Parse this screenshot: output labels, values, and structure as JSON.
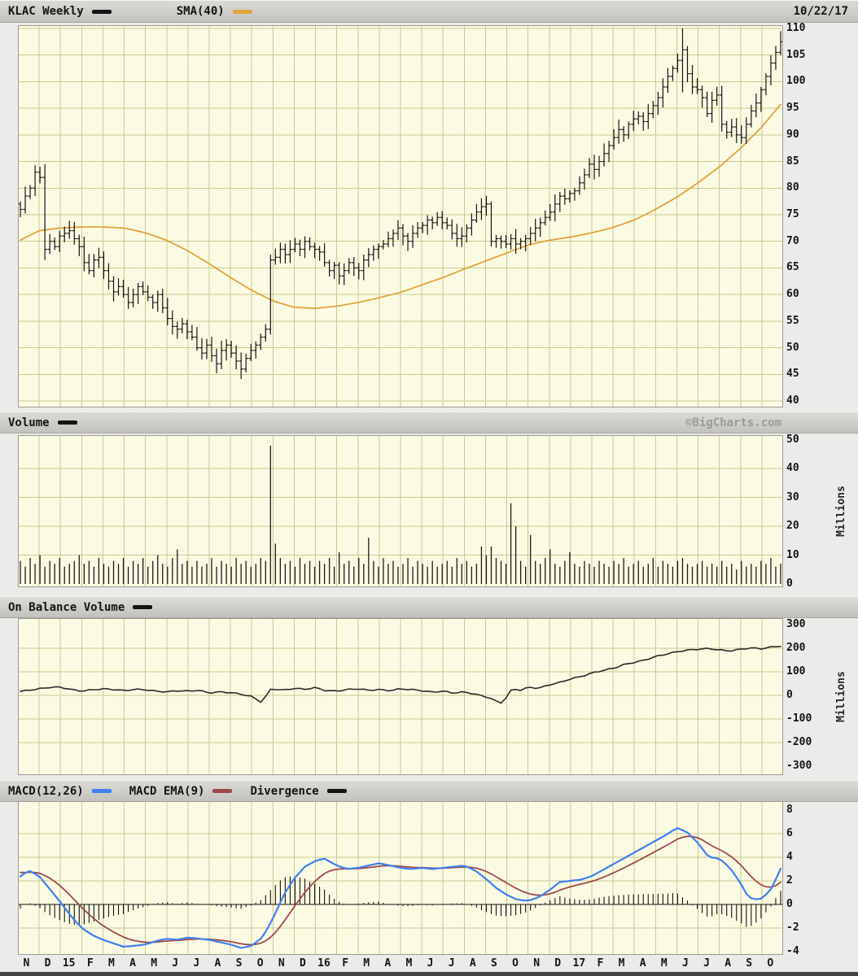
{
  "header": {
    "symbol_label": "KLAC Weekly",
    "sma_label": "SMA(40)",
    "date": "10/22/17"
  },
  "panels": {
    "volume_label": "Volume",
    "obv_label": "On Balance Volume",
    "macd_label": "MACD(12,26)",
    "macd_ema_label": "MACD EMA(9)",
    "divergence_label": "Divergence",
    "copyright": "©BigCharts.com",
    "millions_label": "Millions"
  },
  "colors": {
    "price_bar": "#141414",
    "sma_line": "#e2a33e",
    "volume_bar": "#1a1a1a",
    "obv_line": "#2a2a2a",
    "macd_line": "#4080f0",
    "macd_ema_line": "#a04848",
    "divergence_bar": "#141414",
    "plot_bg": "#fbfbe4",
    "grid": "#c9c98f",
    "frame": "#9a9a92"
  },
  "chart_data": [
    {
      "type": "ohlc-bar",
      "title": "KLAC Weekly",
      "overlay": "SMA(40)",
      "ylim": [
        40,
        110
      ],
      "yticks": [
        110,
        105,
        100,
        95,
        90,
        85,
        80,
        75,
        70,
        65,
        60,
        55,
        50,
        45,
        40
      ],
      "x_month_labels": [
        "N",
        "D",
        "15",
        "F",
        "M",
        "A",
        "M",
        "J",
        "J",
        "A",
        "S",
        "O",
        "N",
        "D",
        "16",
        "F",
        "M",
        "A",
        "M",
        "J",
        "J",
        "A",
        "S",
        "O",
        "N",
        "D",
        "17",
        "F",
        "M",
        "A",
        "M",
        "J",
        "J",
        "A",
        "S",
        "O"
      ],
      "weekly_closes": [
        76,
        78.5,
        80,
        83,
        82,
        68.5,
        70,
        69,
        71,
        71.5,
        72,
        70.5,
        69,
        66,
        64.5,
        66.5,
        67,
        64.5,
        62.5,
        60.5,
        61.5,
        60,
        58.5,
        60,
        61.5,
        60.5,
        59.5,
        58.5,
        60,
        57.5,
        55.5,
        54,
        53.5,
        54.5,
        53,
        52,
        50,
        49,
        50.5,
        48.5,
        47,
        49.5,
        50.5,
        49,
        47.5,
        46,
        48,
        49.5,
        50.5,
        52,
        53.5,
        66.5,
        67,
        68.5,
        67.5,
        68.5,
        69.5,
        68.5,
        70,
        69,
        68.5,
        68,
        66,
        64.5,
        65.5,
        63.5,
        64.5,
        66,
        65,
        64.5,
        66.5,
        67.5,
        68.5,
        69,
        69.5,
        70.5,
        71.5,
        72.5,
        71,
        70,
        71.5,
        72.5,
        73,
        74,
        73.5,
        74.5,
        73.5,
        73,
        71.5,
        70.5,
        71,
        72.5,
        74,
        75.5,
        76.5,
        77,
        70,
        70.5,
        70,
        69.5,
        70.5,
        69.5,
        70,
        70.5,
        71.5,
        72.5,
        73.5,
        74.5,
        75.5,
        77,
        78.5,
        78,
        79,
        79.5,
        81,
        82.5,
        84.5,
        83.5,
        85,
        86.5,
        88,
        89.5,
        91,
        90,
        92,
        93,
        93.5,
        92.5,
        94,
        95.5,
        97,
        99,
        101,
        102.5,
        104,
        106,
        101.5,
        99,
        98.5,
        97,
        94,
        96.5,
        97.5,
        92,
        90.5,
        91.5,
        90,
        89.5,
        92,
        94.5,
        96,
        98.5,
        101,
        103.5,
        105.5,
        107.5
      ],
      "spike_ranges": {
        "5": [
          66.5,
          84.5
        ],
        "51": [
          52.5,
          67.5
        ],
        "96": [
          69,
          77.5
        ],
        "135": [
          98,
          110
        ],
        "155": [
          105,
          109.5
        ]
      },
      "sma40_month_anchors": [
        70,
        72,
        72.5,
        72.7,
        72.7,
        72.5,
        71.6,
        70.2,
        68.2,
        65.8,
        63.2,
        60.8,
        58.8,
        57.6,
        57.4,
        57.8,
        58.5,
        59.4,
        60.4,
        61.8,
        63.2,
        64.8,
        66.3,
        67.8,
        69.3,
        70.2,
        70.8,
        71.6,
        72.6,
        74,
        76,
        78.3,
        81,
        84,
        87.5,
        91.5,
        96.3
      ]
    },
    {
      "type": "bar",
      "title": "Volume",
      "ylabel": "Millions",
      "ylim": [
        0,
        50
      ],
      "yticks": [
        50,
        40,
        30,
        20,
        10,
        0
      ],
      "weekly_volumes_millions": [
        8,
        6,
        9,
        7,
        10,
        6,
        8,
        7,
        9,
        6,
        7,
        8,
        10,
        7,
        8,
        6,
        9,
        7,
        6,
        8,
        7,
        9,
        6,
        8,
        7,
        9,
        6,
        8,
        10,
        7,
        6,
        9,
        12,
        7,
        8,
        6,
        8,
        6,
        7,
        9,
        6,
        8,
        7,
        6,
        9,
        7,
        8,
        6,
        7,
        9,
        8,
        48,
        14,
        9,
        7,
        8,
        6,
        9,
        7,
        8,
        6,
        8,
        7,
        9,
        6,
        11,
        7,
        8,
        6,
        9,
        7,
        16,
        8,
        6,
        9,
        7,
        8,
        6,
        7,
        9,
        6,
        8,
        7,
        6,
        8,
        6,
        7,
        8,
        6,
        9,
        7,
        8,
        6,
        7,
        13,
        10,
        13,
        9,
        8,
        7,
        28,
        20,
        8,
        6,
        17,
        8,
        7,
        9,
        12,
        7,
        6,
        8,
        11,
        7,
        6,
        8,
        7,
        6,
        8,
        7,
        6,
        8,
        7,
        9,
        6,
        7,
        8,
        6,
        7,
        9,
        6,
        8,
        7,
        6,
        8,
        9,
        7,
        6,
        7,
        8,
        6,
        7,
        6,
        8,
        6,
        7,
        5,
        8,
        6,
        7,
        6,
        8,
        7,
        9,
        6,
        7
      ]
    },
    {
      "type": "line",
      "title": "On Balance Volume",
      "ylabel": "Millions",
      "ylim": [
        -300,
        300
      ],
      "yticks": [
        300,
        200,
        100,
        0,
        -100,
        -200,
        -300
      ],
      "obv_anchors_month_value": [
        [
          0,
          15
        ],
        [
          0.5,
          22
        ],
        [
          1,
          28
        ],
        [
          1.5,
          34
        ],
        [
          2,
          35
        ],
        [
          2.5,
          25
        ],
        [
          3,
          18
        ],
        [
          3.5,
          24
        ],
        [
          4,
          28
        ],
        [
          4.5,
          25
        ],
        [
          5,
          20
        ],
        [
          5.5,
          26
        ],
        [
          6,
          24
        ],
        [
          6.5,
          18
        ],
        [
          7,
          15
        ],
        [
          7.5,
          20
        ],
        [
          8,
          18
        ],
        [
          8.5,
          22
        ],
        [
          9,
          10
        ],
        [
          9.5,
          15
        ],
        [
          10,
          12
        ],
        [
          10.5,
          5
        ],
        [
          11,
          -5
        ],
        [
          11.3,
          -20
        ],
        [
          11.55,
          -35
        ],
        [
          11.75,
          22
        ],
        [
          12,
          28
        ],
        [
          12.5,
          22
        ],
        [
          13,
          30
        ],
        [
          13.5,
          26
        ],
        [
          14,
          33
        ],
        [
          14.5,
          20
        ],
        [
          15,
          18
        ],
        [
          15.5,
          25
        ],
        [
          16,
          28
        ],
        [
          16.5,
          22
        ],
        [
          17,
          25
        ],
        [
          17.5,
          20
        ],
        [
          18,
          28
        ],
        [
          18.5,
          25
        ],
        [
          19,
          20
        ],
        [
          19.5,
          14
        ],
        [
          20,
          18
        ],
        [
          20.5,
          10
        ],
        [
          21,
          15
        ],
        [
          21.5,
          5
        ],
        [
          22,
          -5
        ],
        [
          22.3,
          -15
        ],
        [
          22.6,
          -30
        ],
        [
          22.85,
          -32
        ],
        [
          23.1,
          18
        ],
        [
          23.4,
          26
        ],
        [
          23.7,
          22
        ],
        [
          24,
          35
        ],
        [
          24.5,
          30
        ],
        [
          25,
          45
        ],
        [
          25.5,
          55
        ],
        [
          26,
          70
        ],
        [
          26.5,
          80
        ],
        [
          27,
          95
        ],
        [
          27.5,
          105
        ],
        [
          28,
          115
        ],
        [
          28.5,
          130
        ],
        [
          29,
          140
        ],
        [
          29.5,
          150
        ],
        [
          30,
          165
        ],
        [
          30.5,
          175
        ],
        [
          31,
          185
        ],
        [
          31.5,
          192
        ],
        [
          32,
          196
        ],
        [
          32.5,
          199
        ],
        [
          33,
          193
        ],
        [
          33.5,
          188
        ],
        [
          34,
          196
        ],
        [
          34.5,
          201
        ],
        [
          35,
          198
        ],
        [
          35.5,
          206
        ],
        [
          36,
          210
        ]
      ]
    },
    {
      "type": "line-histogram",
      "title": "MACD(12,26)",
      "series_labels": [
        "MACD(12,26)",
        "MACD EMA(9)",
        "Divergence"
      ],
      "ylim": [
        -4,
        8
      ],
      "yticks": [
        8,
        6,
        4,
        2,
        0,
        -2,
        -4
      ],
      "macd_anchors_month_value": [
        [
          0,
          2.2
        ],
        [
          0.5,
          2.9
        ],
        [
          1,
          2.4
        ],
        [
          1.5,
          1.3
        ],
        [
          2,
          0.2
        ],
        [
          2.5,
          -1.0
        ],
        [
          3,
          -2.0
        ],
        [
          3.5,
          -2.6
        ],
        [
          4,
          -3.0
        ],
        [
          4.5,
          -3.3
        ],
        [
          5,
          -3.6
        ],
        [
          5.5,
          -3.5
        ],
        [
          6,
          -3.4
        ],
        [
          6.5,
          -3.1
        ],
        [
          7,
          -2.9
        ],
        [
          7.5,
          -3.0
        ],
        [
          8,
          -2.8
        ],
        [
          8.5,
          -2.9
        ],
        [
          9,
          -3.0
        ],
        [
          9.5,
          -3.2
        ],
        [
          10,
          -3.4
        ],
        [
          10.5,
          -3.7
        ],
        [
          11,
          -3.5
        ],
        [
          11.5,
          -2.8
        ],
        [
          12,
          -1.2
        ],
        [
          12.5,
          0.8
        ],
        [
          13,
          2.2
        ],
        [
          13.5,
          3.2
        ],
        [
          14,
          3.7
        ],
        [
          14.4,
          3.9
        ],
        [
          15,
          3.3
        ],
        [
          15.5,
          3.0
        ],
        [
          16,
          3.1
        ],
        [
          16.5,
          3.3
        ],
        [
          17,
          3.5
        ],
        [
          17.5,
          3.3
        ],
        [
          18,
          3.1
        ],
        [
          18.5,
          3.0
        ],
        [
          19,
          3.1
        ],
        [
          19.5,
          3.0
        ],
        [
          20,
          3.1
        ],
        [
          20.5,
          3.2
        ],
        [
          21,
          3.3
        ],
        [
          21.5,
          2.9
        ],
        [
          22,
          2.2
        ],
        [
          22.5,
          1.4
        ],
        [
          23,
          0.8
        ],
        [
          23.5,
          0.4
        ],
        [
          24,
          0.3
        ],
        [
          24.5,
          0.6
        ],
        [
          25,
          1.2
        ],
        [
          25.5,
          1.9
        ],
        [
          26,
          2.0
        ],
        [
          26.5,
          2.1
        ],
        [
          27,
          2.4
        ],
        [
          27.5,
          2.9
        ],
        [
          28,
          3.4
        ],
        [
          28.5,
          3.9
        ],
        [
          29,
          4.4
        ],
        [
          29.5,
          4.9
        ],
        [
          30,
          5.4
        ],
        [
          30.5,
          5.9
        ],
        [
          31,
          6.5
        ],
        [
          31.5,
          6.1
        ],
        [
          32,
          5.2
        ],
        [
          32.5,
          4.0
        ],
        [
          33,
          3.9
        ],
        [
          33.5,
          3.1
        ],
        [
          34,
          1.8
        ],
        [
          34.3,
          0.8
        ],
        [
          34.6,
          0.4
        ],
        [
          35,
          0.5
        ],
        [
          35.4,
          1.2
        ],
        [
          35.7,
          2.3
        ],
        [
          36,
          3.5
        ]
      ],
      "ema9_seed": 2.8
    }
  ]
}
